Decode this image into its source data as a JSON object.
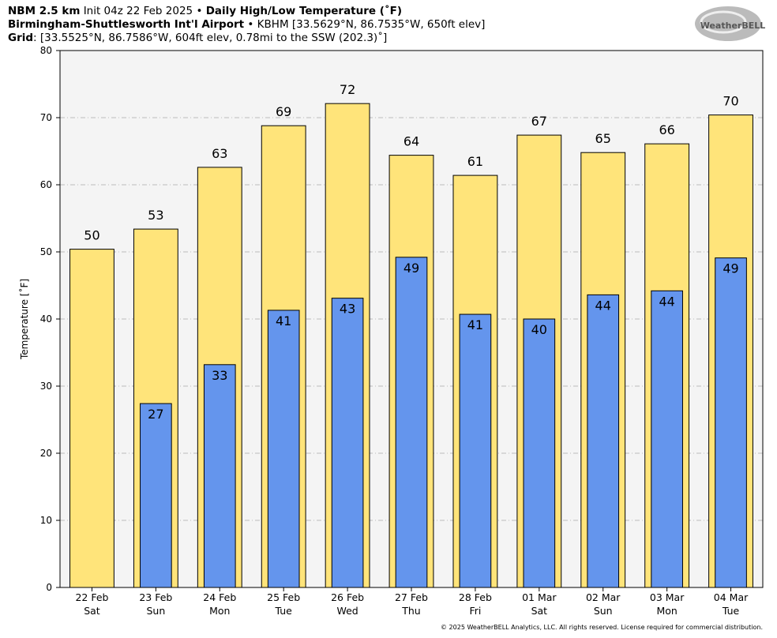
{
  "header": {
    "model": "NBM 2.5 km",
    "init": "Init 04z 22 Feb 2025",
    "separator": "•",
    "product": "Daily High/Low Temperature (˚F)",
    "station_name": "Birmingham-Shuttlesworth Int'l Airport",
    "station_info": "KBHM [33.5629°N, 86.7535°W, 650ft elev]",
    "grid_label": "Grid",
    "grid_info": ": [33.5525°N, 86.7586°W, 604ft elev, 0.78mi to the SSW (202.3)˚]"
  },
  "logo": "WeatherBELL",
  "footer": "© 2025 WeatherBELL Analytics, LLC. All rights reserved. License required for commercial distribution.",
  "chart_data": {
    "type": "bar",
    "ylabel": "Temperature [˚F]",
    "categories": [
      "22 Feb",
      "23 Feb",
      "24 Feb",
      "25 Feb",
      "26 Feb",
      "27 Feb",
      "28 Feb",
      "01 Mar",
      "02 Mar",
      "03 Mar",
      "04 Mar"
    ],
    "weekdays": [
      "Sat",
      "Sun",
      "Mon",
      "Tue",
      "Wed",
      "Thu",
      "Fri",
      "Sat",
      "Sun",
      "Mon",
      "Tue"
    ],
    "series": [
      {
        "color": "#ffe47a",
        "values": [
          50.4,
          53.4,
          62.6,
          68.8,
          72.1,
          64.4,
          61.4,
          67.4,
          64.8,
          66.1,
          70.4
        ],
        "value_labels": [
          "50",
          "53",
          "63",
          "69",
          "72",
          "64",
          "61",
          "67",
          "65",
          "66",
          "70"
        ]
      },
      {
        "color": "#6495ed",
        "values": [
          null,
          27.4,
          33.2,
          41.3,
          43.1,
          49.2,
          40.7,
          40.0,
          43.6,
          44.2,
          49.1
        ],
        "value_labels": [
          null,
          "27",
          "33",
          "41",
          "43",
          "49",
          "41",
          "40",
          "44",
          "44",
          "49"
        ]
      }
    ],
    "ylim": [
      0,
      80
    ],
    "yticks": [
      0,
      10,
      20,
      30,
      40,
      50,
      60,
      70,
      80
    ],
    "grid": true
  }
}
